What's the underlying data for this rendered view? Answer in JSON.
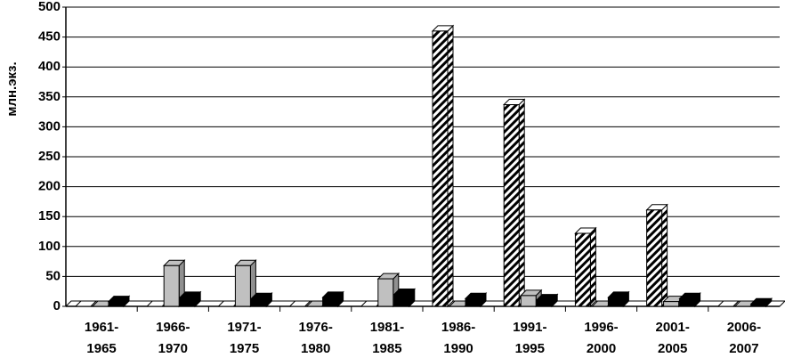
{
  "chart_data": {
    "type": "bar3d",
    "y_axis_label": "млн.экз.",
    "categories": [
      [
        "1961-",
        "1965"
      ],
      [
        "1966-",
        "1970"
      ],
      [
        "1971-",
        "1975"
      ],
      [
        "1976-",
        "1980"
      ],
      [
        "1981-",
        "1985"
      ],
      [
        "1986-",
        "1990"
      ],
      [
        "1991-",
        "1995"
      ],
      [
        "1996-",
        "2000"
      ],
      [
        "2001-",
        "2005"
      ],
      [
        "2006-",
        "2007"
      ]
    ],
    "series": [
      {
        "color": "#000000",
        "pattern": "diagonal-hatch",
        "values": [
          0,
          0,
          0,
          0,
          0,
          460,
          337,
          122,
          161,
          0
        ]
      },
      {
        "color": "#c0c0c0",
        "values": [
          0,
          68,
          68,
          0,
          46,
          0,
          18,
          0,
          8,
          0
        ]
      },
      {
        "color": "#000000",
        "values": [
          8,
          15,
          13,
          15,
          20,
          13,
          11,
          15,
          13,
          4
        ]
      }
    ],
    "ylim": [
      0,
      500
    ],
    "yticks": [
      0,
      50,
      100,
      150,
      200,
      250,
      300,
      350,
      400,
      450,
      500
    ],
    "grid": true
  }
}
